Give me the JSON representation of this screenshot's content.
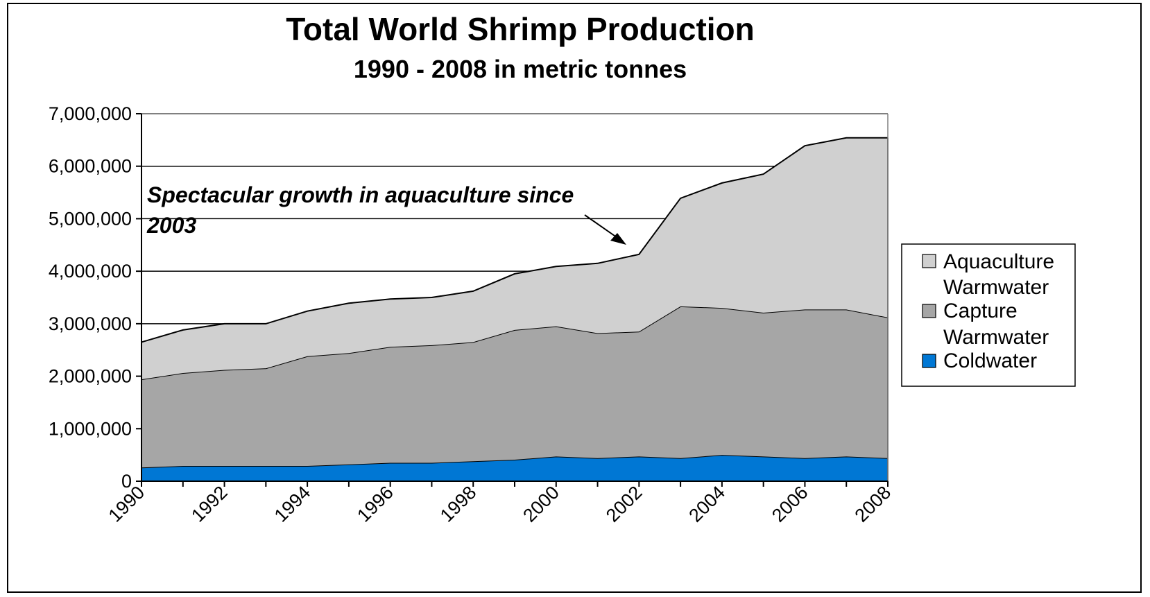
{
  "chart_data": {
    "type": "area",
    "stacked": true,
    "title": "Total World Shrimp Production",
    "subtitle": "1990 - 2008 in metric tonnes",
    "xlabel": "",
    "ylabel": "",
    "ylim": [
      0,
      7000000
    ],
    "yticks": [
      "0",
      "1,000,000",
      "2,000,000",
      "3,000,000",
      "4,000,000",
      "5,000,000",
      "6,000,000",
      "7,000,000"
    ],
    "xtick_labels": [
      "1990",
      "1992",
      "1994",
      "1996",
      "1998",
      "2000",
      "2002",
      "2004",
      "2006",
      "2008"
    ],
    "x": [
      1990,
      1991,
      1992,
      1993,
      1994,
      1995,
      1996,
      1997,
      1998,
      1999,
      2000,
      2001,
      2002,
      2003,
      2004,
      2005,
      2006,
      2007,
      2008
    ],
    "series": [
      {
        "name": "Coldwater",
        "color": "#0077d4",
        "values": [
          260000,
          290000,
          290000,
          290000,
          290000,
          320000,
          350000,
          350000,
          380000,
          410000,
          470000,
          440000,
          470000,
          440000,
          500000,
          470000,
          440000,
          470000,
          440000
        ]
      },
      {
        "name": "Capture Warmwater",
        "color": "#a6a6a6",
        "values": [
          1680000,
          1770000,
          1830000,
          1860000,
          2090000,
          2120000,
          2210000,
          2240000,
          2270000,
          2470000,
          2480000,
          2380000,
          2380000,
          2890000,
          2800000,
          2740000,
          2830000,
          2800000,
          2680000
        ]
      },
      {
        "name": "Aquaculture Warmwater",
        "color": "#d0d0d0",
        "values": [
          710000,
          820000,
          880000,
          850000,
          860000,
          950000,
          910000,
          910000,
          970000,
          1070000,
          1140000,
          1330000,
          1470000,
          2060000,
          2380000,
          2640000,
          3120000,
          3270000,
          3420000
        ]
      }
    ],
    "legend": {
      "position": "right",
      "lines": [
        "Aquaculture",
        "Warmwater",
        "Capture",
        "Warmwater",
        "Coldwater"
      ]
    },
    "annotation": {
      "lines": [
        "Spectacular growth in aquaculture since",
        "2003"
      ]
    },
    "grid": "horizontal"
  }
}
